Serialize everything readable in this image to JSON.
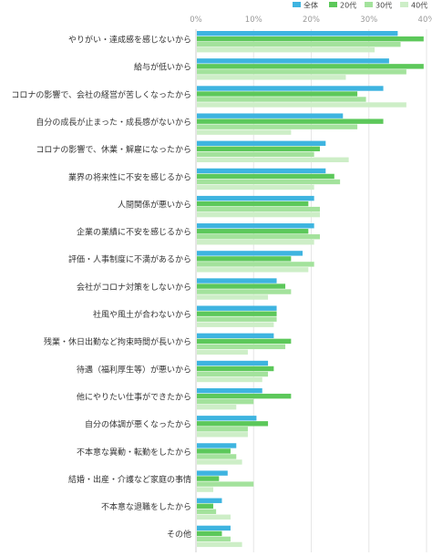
{
  "chart_data": {
    "type": "bar",
    "orientation": "horizontal",
    "title": "",
    "xlabel": "",
    "ylabel": "",
    "xlim": [
      0,
      40
    ],
    "tick_labels": [
      "0%",
      "10%",
      "20%",
      "30%",
      "40%"
    ],
    "grid": true,
    "legend_position": "top-right",
    "colors": [
      "#3eb4e0",
      "#5cc85a",
      "#a3e29c",
      "#cdeec7"
    ],
    "categories": [
      "やりがい・達成感を感じないから",
      "給与が低いから",
      "コロナの影響で、会社の経営が苦しくなったから",
      "自分の成長が止まった・成長感がないから",
      "コロナの影響で、休業・解雇になったから",
      "業界の将来性に不安を感じるから",
      "人間関係が悪いから",
      "企業の業績に不安を感じるから",
      "評価・人事制度に不満があるから",
      "会社がコロナ対策をしないから",
      "社風や風土が合わないから",
      "残業・休日出勤など拘束時間が長いから",
      "待遇（福利厚生等）が悪いから",
      "他にやりたい仕事ができたから",
      "自分の体調が悪くなったから",
      "不本意な異動・転勤をしたから",
      "結婚・出産・介護など家庭の事情",
      "不本意な退職をしたから",
      "その他"
    ],
    "series": [
      {
        "name": "全体",
        "values": [
          35.0,
          33.5,
          32.5,
          25.5,
          22.5,
          22.5,
          20.5,
          20.5,
          18.5,
          14.0,
          14.0,
          13.5,
          12.5,
          11.5,
          10.5,
          7.0,
          5.5,
          4.5,
          6.0
        ]
      },
      {
        "name": "20代",
        "values": [
          39.5,
          39.5,
          28.0,
          32.5,
          21.5,
          24.0,
          19.5,
          19.5,
          16.5,
          15.5,
          14.0,
          16.5,
          13.5,
          16.5,
          12.5,
          6.0,
          4.0,
          3.0,
          4.5
        ]
      },
      {
        "name": "30代",
        "values": [
          35.5,
          36.5,
          29.5,
          28.0,
          20.5,
          25.0,
          21.5,
          21.5,
          20.5,
          16.5,
          14.0,
          15.5,
          12.5,
          10.0,
          9.0,
          7.0,
          10.0,
          3.5,
          6.0
        ]
      },
      {
        "name": "40代",
        "values": [
          31.0,
          26.0,
          36.5,
          16.5,
          26.5,
          20.5,
          21.5,
          20.5,
          19.5,
          12.5,
          13.5,
          9.0,
          11.5,
          7.0,
          9.0,
          8.0,
          3.0,
          6.0,
          8.0
        ]
      }
    ]
  }
}
